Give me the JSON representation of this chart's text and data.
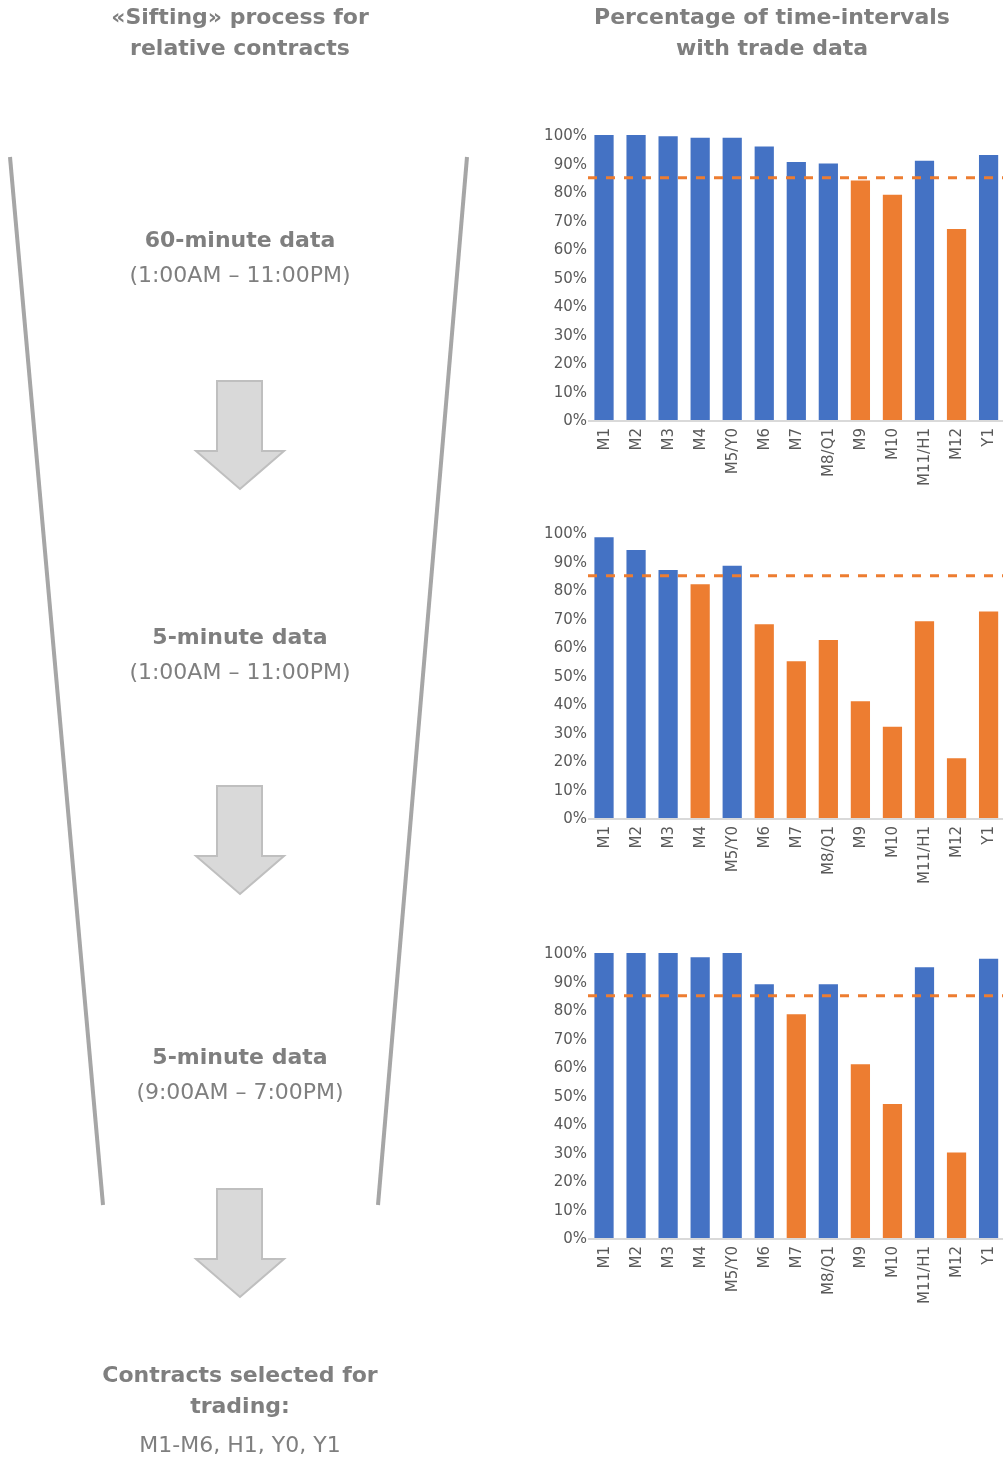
{
  "chart_data": [
    {
      "type": "other",
      "title": "«Sifting» process for relative contracts",
      "annotations": [
        "60-minute data",
        "(1:00AM – 11:00PM)",
        "5-minute data",
        "(1:00AM – 11:00PM)",
        "5-minute data",
        "(9:00AM – 7:00PM)",
        "Contracts selected for trading:",
        "M1-M6, H1, Y0, Y1"
      ]
    },
    {
      "type": "bar",
      "title": "Percentage of time-intervals with trade data",
      "categories": [
        "M1",
        "M2",
        "M3",
        "M4",
        "M5/Y0",
        "M6",
        "M7",
        "M8/Q1",
        "M9",
        "M10",
        "M11/H1",
        "M12",
        "Y1"
      ],
      "values": [
        100,
        100,
        99.6,
        99,
        99,
        96,
        90.5,
        90,
        84,
        79,
        91,
        67,
        93
      ],
      "colors": [
        "#4472c4",
        "#4472c4",
        "#4472c4",
        "#4472c4",
        "#4472c4",
        "#4472c4",
        "#4472c4",
        "#4472c4",
        "#ed7d31",
        "#ed7d31",
        "#4472c4",
        "#ed7d31",
        "#4472c4"
      ],
      "ylim": [
        0,
        100
      ],
      "yticks": [
        {
          "value": 0,
          "label": "0%"
        },
        {
          "value": 10,
          "label": "10%"
        },
        {
          "value": 20,
          "label": "20%"
        },
        {
          "value": 30,
          "label": "30%"
        },
        {
          "value": 40,
          "label": "40%"
        },
        {
          "value": 50,
          "label": "50%"
        },
        {
          "value": 60,
          "label": "60%"
        },
        {
          "value": 70,
          "label": "70%"
        },
        {
          "value": 80,
          "label": "80%"
        },
        {
          "value": 90,
          "label": "90%"
        },
        {
          "value": 100,
          "label": "100%"
        }
      ],
      "ref_lines": [
        {
          "axis": "y",
          "value": 85,
          "color": "#ed7d31",
          "line_style": "dashed"
        }
      ]
    },
    {
      "type": "bar",
      "categories": [
        "M1",
        "M2",
        "M3",
        "M4",
        "M5/Y0",
        "M6",
        "M7",
        "M8/Q1",
        "M9",
        "M10",
        "M11/H1",
        "M12",
        "Y1"
      ],
      "values": [
        98.5,
        94,
        87,
        82,
        88.5,
        68,
        55,
        62.5,
        41,
        32,
        69,
        21,
        72.5
      ],
      "colors": [
        "#4472c4",
        "#4472c4",
        "#4472c4",
        "#ed7d31",
        "#4472c4",
        "#ed7d31",
        "#ed7d31",
        "#ed7d31",
        "#ed7d31",
        "#ed7d31",
        "#ed7d31",
        "#ed7d31",
        "#ed7d31"
      ],
      "ylim": [
        0,
        100
      ],
      "yticks": [
        {
          "value": 0,
          "label": "0%"
        },
        {
          "value": 10,
          "label": "10%"
        },
        {
          "value": 20,
          "label": "20%"
        },
        {
          "value": 30,
          "label": "30%"
        },
        {
          "value": 40,
          "label": "40%"
        },
        {
          "value": 50,
          "label": "50%"
        },
        {
          "value": 60,
          "label": "60%"
        },
        {
          "value": 70,
          "label": "70%"
        },
        {
          "value": 80,
          "label": "80%"
        },
        {
          "value": 90,
          "label": "90%"
        },
        {
          "value": 100,
          "label": "100%"
        }
      ],
      "ref_lines": [
        {
          "axis": "y",
          "value": 85,
          "color": "#ed7d31",
          "line_style": "dashed"
        }
      ]
    },
    {
      "type": "bar",
      "categories": [
        "M1",
        "M2",
        "M3",
        "M4",
        "M5/Y0",
        "M6",
        "M7",
        "M8/Q1",
        "M9",
        "M10",
        "M11/H1",
        "M12",
        "Y1"
      ],
      "values": [
        100,
        100,
        100,
        98.5,
        100,
        89,
        78.5,
        89,
        61,
        47,
        95,
        30,
        98
      ],
      "colors": [
        "#4472c4",
        "#4472c4",
        "#4472c4",
        "#4472c4",
        "#4472c4",
        "#4472c4",
        "#ed7d31",
        "#4472c4",
        "#ed7d31",
        "#ed7d31",
        "#4472c4",
        "#ed7d31",
        "#4472c4"
      ],
      "ylim": [
        0,
        100
      ],
      "yticks": [
        {
          "value": 0,
          "label": "0%"
        },
        {
          "value": 10,
          "label": "10%"
        },
        {
          "value": 20,
          "label": "20%"
        },
        {
          "value": 30,
          "label": "30%"
        },
        {
          "value": 40,
          "label": "40%"
        },
        {
          "value": 50,
          "label": "50%"
        },
        {
          "value": 60,
          "label": "60%"
        },
        {
          "value": 70,
          "label": "70%"
        },
        {
          "value": 80,
          "label": "80%"
        },
        {
          "value": 90,
          "label": "90%"
        },
        {
          "value": 100,
          "label": "100%"
        }
      ],
      "ref_lines": [
        {
          "axis": "y",
          "value": 85,
          "color": "#ed7d31",
          "line_style": "dashed"
        }
      ]
    }
  ]
}
